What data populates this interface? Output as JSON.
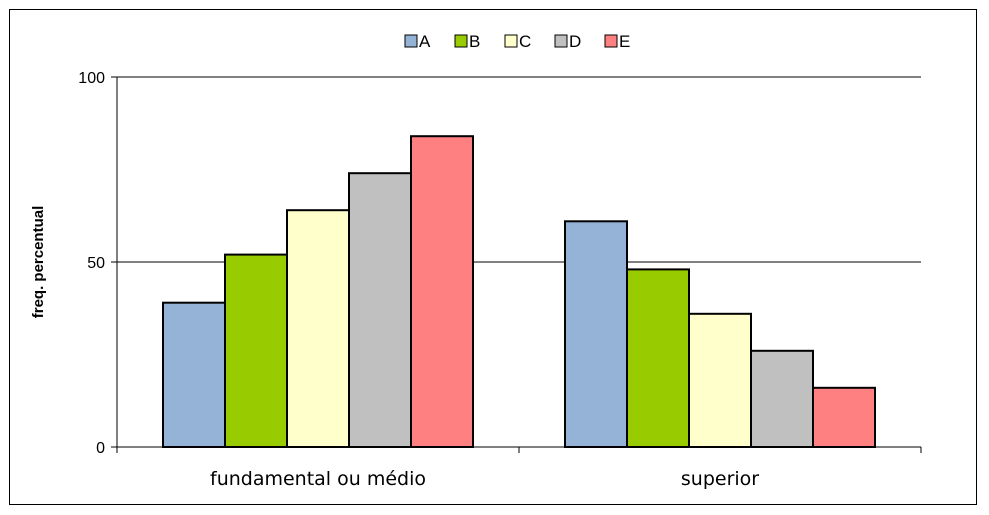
{
  "chart_data": {
    "type": "bar",
    "title": "",
    "xlabel": "",
    "ylabel": "freq. percentual",
    "ylim": [
      0,
      100
    ],
    "yticks": [
      0,
      50,
      100
    ],
    "grid": "horizontal",
    "legend_position": "top",
    "categories": [
      "fundamental ou médio",
      "superior"
    ],
    "series": [
      {
        "name": "A",
        "color": "#95B3D7",
        "values": [
          39,
          61
        ]
      },
      {
        "name": "B",
        "color": "#99CC00",
        "values": [
          52,
          48
        ]
      },
      {
        "name": "C",
        "color": "#FFFFCC",
        "values": [
          64,
          36
        ]
      },
      {
        "name": "D",
        "color": "#C0C0C0",
        "values": [
          74,
          26
        ]
      },
      {
        "name": "E",
        "color": "#FF8080",
        "values": [
          84,
          16
        ]
      }
    ]
  }
}
